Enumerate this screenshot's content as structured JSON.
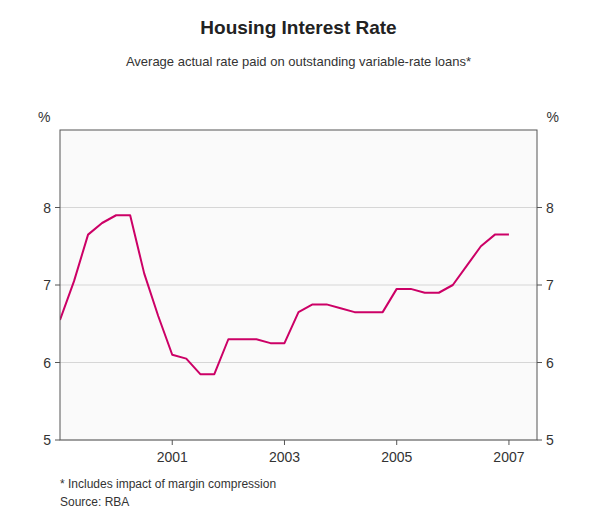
{
  "chart_data": {
    "type": "line",
    "title": "Housing Interest Rate",
    "subtitle": "Average actual rate paid on outstanding variable-rate loans*",
    "annotations": [
      "*   Includes impact of margin compression",
      "Source: RBA"
    ],
    "y_label": "%",
    "y2_label": "%",
    "color": "#CC0066",
    "grid": true,
    "xlim": [
      1999.0,
      2007.5
    ],
    "xticks": [
      2001,
      2003,
      2005,
      2007
    ],
    "ylim": [
      5,
      9
    ],
    "yticks": [
      5,
      6,
      7,
      8
    ],
    "y2lim": [
      5,
      9
    ],
    "y2ticks": [
      5,
      6,
      7,
      8
    ],
    "x": [
      1999.0,
      1999.25,
      1999.5,
      1999.75,
      2000.0,
      2000.25,
      2000.5,
      2000.75,
      2001.0,
      2001.25,
      2001.5,
      2001.75,
      2002.0,
      2002.25,
      2002.5,
      2002.75,
      2003.0,
      2003.25,
      2003.5,
      2003.75,
      2004.0,
      2004.25,
      2004.5,
      2004.75,
      2005.0,
      2005.25,
      2005.5,
      2005.75,
      2006.0,
      2006.25,
      2006.5,
      2006.75,
      2007.0
    ],
    "values": [
      6.55,
      7.05,
      7.65,
      7.8,
      7.9,
      7.9,
      7.15,
      6.6,
      6.1,
      6.05,
      5.85,
      5.85,
      6.3,
      6.3,
      6.3,
      6.25,
      6.25,
      6.65,
      6.75,
      6.75,
      6.7,
      6.65,
      6.65,
      6.65,
      6.95,
      6.95,
      6.9,
      6.9,
      7.0,
      7.25,
      7.5,
      7.65,
      7.65
    ]
  }
}
